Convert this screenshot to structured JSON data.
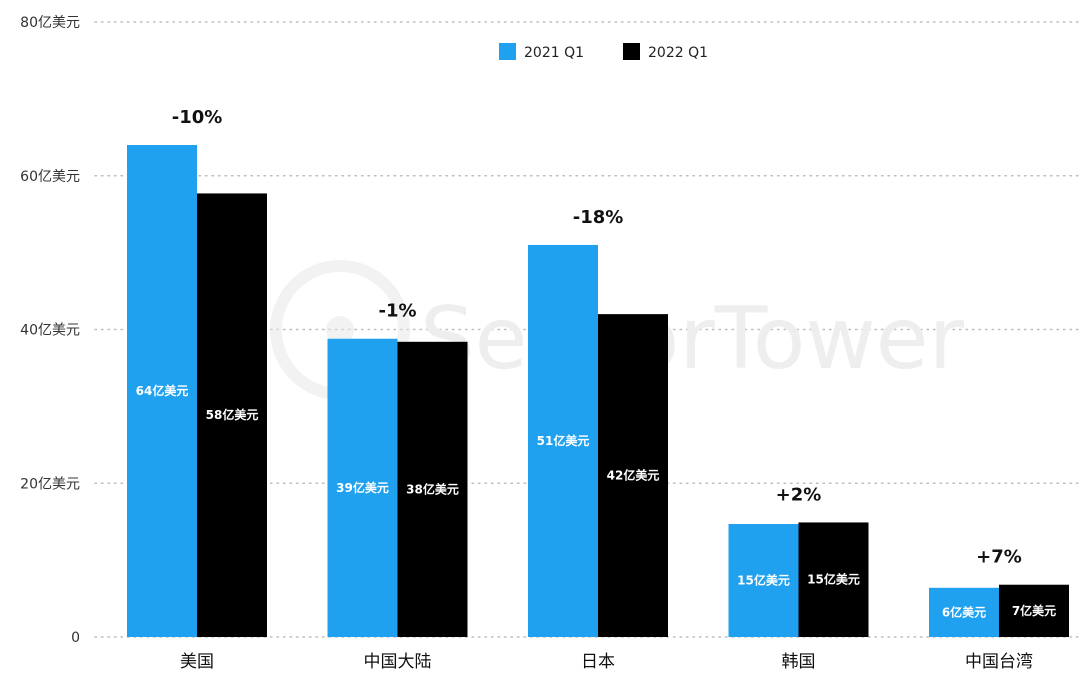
{
  "chart_data": {
    "type": "bar",
    "categories": [
      "美国",
      "中国大陆",
      "日本",
      "韩国",
      "中国台湾"
    ],
    "series": [
      {
        "name": "2021 Q1",
        "color": "#1fa1ef",
        "values": [
          64,
          38.8,
          51,
          14.7,
          6.4
        ],
        "labels": [
          "64亿美元",
          "39亿美元",
          "51亿美元",
          "15亿美元",
          "6亿美元"
        ]
      },
      {
        "name": "2022 Q1",
        "color": "#000000",
        "values": [
          57.7,
          38.4,
          42,
          14.9,
          6.8
        ],
        "labels": [
          "58亿美元",
          "38亿美元",
          "42亿美元",
          "15亿美元",
          "7亿美元"
        ]
      }
    ],
    "changes": [
      "-10%",
      "-1%",
      "-18%",
      "+2%",
      "+7%"
    ],
    "yticks": [
      "0",
      "20亿美元",
      "40亿美元",
      "60亿美元",
      "80亿美元"
    ],
    "ylim": [
      0,
      80
    ],
    "grid": true,
    "legend_position": "top-center",
    "watermark": "SensorTower"
  }
}
